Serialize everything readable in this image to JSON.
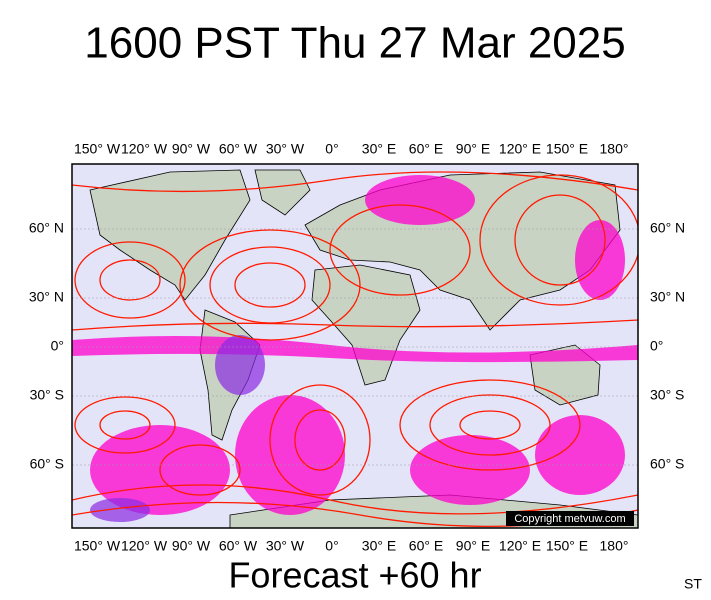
{
  "header": {
    "title": "1600 PST Thu 27 Mar 2025"
  },
  "map": {
    "longitude_labels": [
      "150° W",
      "120° W",
      "90° W",
      "60° W",
      "30° W",
      "0°",
      "30° E",
      "60° E",
      "90° E",
      "120° E",
      "150° E",
      "180°"
    ],
    "latitude_labels": [
      "60° N",
      "30° N",
      "0°",
      "30° S",
      "60° S"
    ],
    "copyright": "Copyright metvuw.com"
  },
  "footer": {
    "caption": "Forecast +60 hr",
    "corner_text": "ST"
  }
}
